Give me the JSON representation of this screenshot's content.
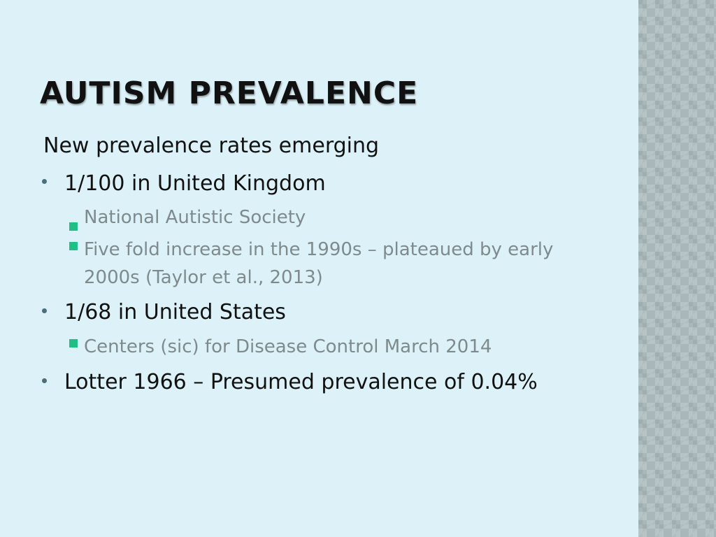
{
  "slide": {
    "title": "AUTISM PREVALENCE",
    "intro": "New prevalence rates emerging",
    "bullets": [
      {
        "text": "1/100 in United Kingdom",
        "sub": [
          "National Autistic Society",
          "Five fold increase in the 1990s – plateaued by early 2000s (Taylor et al., 2013)"
        ]
      },
      {
        "text": "1/68  in United States",
        "sub": [
          "Centers (sic) for Disease Control March 2014"
        ]
      },
      {
        "text": "Lotter 1966 – Presumed prevalence of 0.04%",
        "sub": []
      }
    ]
  },
  "colors": {
    "background": "#dcf2f8",
    "side_pattern": "#a7b7ba",
    "title_text": "#111111",
    "sub_text": "#7f8a8d",
    "level1_bullet": "#4a6f7a",
    "level2_bullet": "#1fbf86"
  }
}
